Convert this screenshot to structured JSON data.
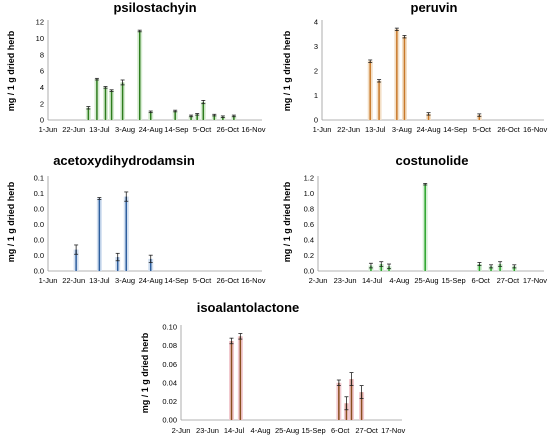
{
  "chart_data": [
    {
      "type": "bar",
      "title": "psilostachyin",
      "ylabel": "mg / 1 g dried herb",
      "xlabel": "",
      "ylim": [
        0,
        12
      ],
      "yticks": [
        "0",
        "2",
        "4",
        "6",
        "8",
        "10",
        "12"
      ],
      "xticks": [
        "1-Jun",
        "22-Jun",
        "13-Jul",
        "3-Aug",
        "24-Aug",
        "14-Sep",
        "5-Oct",
        "26-Oct",
        "16-Nov"
      ],
      "xrange": [
        "2023-06-01",
        "2023-11-23"
      ],
      "grid": false,
      "color": "#2e7d1e",
      "shade": "#d7ecd2",
      "x": [
        "2023-07-04",
        "2023-07-11",
        "2023-07-18",
        "2023-07-23",
        "2023-08-01",
        "2023-08-15",
        "2023-08-24",
        "2023-09-13",
        "2023-09-26",
        "2023-10-01",
        "2023-10-06",
        "2023-10-15",
        "2023-10-22",
        "2023-10-31"
      ],
      "values": [
        1.5,
        5.0,
        4.0,
        3.6,
        4.6,
        10.9,
        1.0,
        1.1,
        0.5,
        0.7,
        2.2,
        0.6,
        0.4,
        0.5
      ],
      "errors": [
        0.15,
        0.1,
        0.1,
        0.1,
        0.3,
        0.1,
        0.1,
        0.1,
        0.1,
        0.1,
        0.2,
        0.1,
        0.1,
        0.1
      ]
    },
    {
      "type": "bar",
      "title": "peruvin",
      "ylabel": "mg / 1 g dried herb",
      "xlabel": "",
      "ylim": [
        0,
        4
      ],
      "yticks": [
        "0",
        "1",
        "2",
        "3",
        "4"
      ],
      "xticks": [
        "1-Jun",
        "22-Jun",
        "13-Jul",
        "3-Aug",
        "24-Aug",
        "14-Sep",
        "5-Oct",
        "26-Oct",
        "16-Nov"
      ],
      "xrange": [
        "2023-06-01",
        "2023-11-23"
      ],
      "grid": false,
      "color": "#c8792a",
      "shade": "#f3dfc6",
      "x": [
        "2023-07-09",
        "2023-07-16",
        "2023-07-30",
        "2023-08-05",
        "2023-08-24",
        "2023-10-03"
      ],
      "values": [
        2.4,
        1.6,
        3.7,
        3.4,
        0.25,
        0.2
      ],
      "errors": [
        0.05,
        0.05,
        0.05,
        0.05,
        0.05,
        0.05
      ]
    },
    {
      "type": "bar",
      "title": "acetoxydihydrodamsin",
      "ylabel": "mg / 1 g dried herb",
      "xlabel": "",
      "ylim": [
        0,
        0.1
      ],
      "yticks": [
        "0.0",
        "0.0",
        "0.0",
        "0.0",
        "0.0",
        "0.1",
        "0.1"
      ],
      "xticks": [
        "1-Jun",
        "22-Jun",
        "13-Jul",
        "3-Aug",
        "24-Aug",
        "14-Sep",
        "5-Oct",
        "26-Oct",
        "16-Nov"
      ],
      "xrange": [
        "2023-06-01",
        "2023-11-23"
      ],
      "grid": false,
      "color": "#2f5f9e",
      "shade": "#d3e0f1",
      "x": [
        "2023-06-24",
        "2023-07-13",
        "2023-07-28",
        "2023-08-04",
        "2023-08-24"
      ],
      "values": [
        0.023,
        0.078,
        0.015,
        0.08,
        0.013
      ],
      "errors": [
        0.005,
        0.001,
        0.004,
        0.005,
        0.004
      ]
    },
    {
      "type": "bar",
      "title": "costunolide",
      "ylabel": "mg / 1 g dried herb",
      "xlabel": "",
      "ylim": [
        0,
        1.2
      ],
      "yticks": [
        "0.0",
        "0.2",
        "0.4",
        "0.6",
        "0.8",
        "1.0",
        "1.2"
      ],
      "xticks": [
        "2-Jun",
        "23-Jun",
        "14-Jul",
        "4-Aug",
        "25-Aug",
        "15-Sep",
        "6-Oct",
        "27-Oct",
        "17-Nov"
      ],
      "xrange": [
        "2023-06-02",
        "2023-11-24"
      ],
      "grid": false,
      "color": "#2aa32a",
      "shade": "#d4efd4",
      "x": [
        "2023-07-13",
        "2023-07-21",
        "2023-07-27",
        "2023-08-24",
        "2023-10-05",
        "2023-10-14",
        "2023-10-21",
        "2023-11-01"
      ],
      "values": [
        0.07,
        0.09,
        0.06,
        1.12,
        0.09,
        0.06,
        0.09,
        0.06
      ],
      "errors": [
        0.03,
        0.03,
        0.03,
        0.01,
        0.02,
        0.02,
        0.03,
        0.02
      ]
    },
    {
      "type": "bar",
      "title": "isoalantolactone",
      "ylabel": "mg / 1 g dried herb",
      "xlabel": "",
      "ylim": [
        0,
        0.1
      ],
      "yticks": [
        "0.00",
        "0.02",
        "0.04",
        "0.06",
        "0.08",
        "0.10"
      ],
      "xticks": [
        "2-Jun",
        "23-Jun",
        "14-Jul",
        "4-Aug",
        "25-Aug",
        "15-Sep",
        "6-Oct",
        "27-Oct",
        "17-Nov"
      ],
      "xrange": [
        "2023-06-02",
        "2023-11-24"
      ],
      "grid": false,
      "color": "#8a4f1f",
      "shade": "#f2c9cf",
      "x": [
        "2023-07-12",
        "2023-07-19",
        "2023-10-05",
        "2023-10-11",
        "2023-10-15",
        "2023-10-23"
      ],
      "values": [
        0.085,
        0.09,
        0.04,
        0.018,
        0.044,
        0.03
      ],
      "errors": [
        0.003,
        0.003,
        0.003,
        0.007,
        0.007,
        0.007
      ]
    }
  ]
}
